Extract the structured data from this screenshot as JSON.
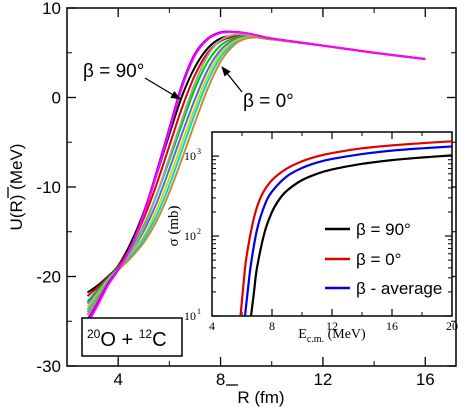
{
  "chart_data": [
    {
      "type": "line",
      "xlabel": "R (fm)",
      "ylabel": "U(R) (MeV)",
      "xlim": [
        2.0,
        17.2
      ],
      "ylim": [
        -30,
        10
      ],
      "xticks": [
        4,
        8,
        12,
        16
      ],
      "yticks": [
        -30,
        -20,
        -10,
        0,
        10
      ],
      "xtick_labels": [
        "4",
        "8",
        "12",
        "16"
      ],
      "ytick_labels": [
        "-30",
        "-20",
        "-10",
        "0",
        "10"
      ],
      "annotations": {
        "beta90": "β = 90°",
        "beta0": "β = 0°",
        "reaction": "20O + 12C"
      },
      "series": [
        {
          "color": "#000000",
          "x": [
            2.8,
            3.2,
            3.6,
            4.0,
            4.5,
            5.0,
            5.5,
            6.0,
            6.5,
            7.0,
            7.5,
            8.0,
            8.5,
            9.0,
            9.5,
            10,
            12,
            14,
            16
          ],
          "y": [
            -21.8,
            -21.0,
            -20.0,
            -18.8,
            -16.2,
            -12.8,
            -8.6,
            -4.1,
            0.2,
            3.4,
            5.5,
            6.6,
            6.9,
            6.9,
            6.7,
            6.5,
            5.8,
            5.0,
            4.3
          ]
        },
        {
          "color": "#e00000",
          "x": [
            2.8,
            3.2,
            3.6,
            4.0,
            4.5,
            5.0,
            5.5,
            6.0,
            6.5,
            7.0,
            7.5,
            8.0,
            8.5,
            9.0,
            9.5,
            10,
            12,
            14,
            16
          ],
          "y": [
            -22.2,
            -21.2,
            -20.1,
            -18.9,
            -16.6,
            -13.5,
            -9.7,
            -5.4,
            -1.1,
            2.5,
            5.0,
            6.3,
            6.8,
            6.85,
            6.7,
            6.5,
            5.8,
            5.0,
            4.3
          ]
        },
        {
          "color": "#00c800",
          "x": [
            2.8,
            3.2,
            3.6,
            4.0,
            4.5,
            5.0,
            5.5,
            6.0,
            6.5,
            7.0,
            7.5,
            8.0,
            8.5,
            9.0,
            9.5,
            10,
            12,
            14,
            16
          ],
          "y": [
            -22.8,
            -21.5,
            -20.2,
            -19.0,
            -17.0,
            -14.3,
            -10.9,
            -7.0,
            -2.9,
            1.0,
            4.0,
            5.8,
            6.6,
            6.8,
            6.7,
            6.5,
            5.8,
            5.0,
            4.3
          ]
        },
        {
          "color": "#4b6fd6",
          "x": [
            2.8,
            3.2,
            3.6,
            4.0,
            4.5,
            5.0,
            5.5,
            6.0,
            6.5,
            7.0,
            7.5,
            8.0,
            8.5,
            9.0,
            9.5,
            10,
            12,
            14,
            16
          ],
          "y": [
            -23.0,
            -21.7,
            -20.3,
            -19.1,
            -17.3,
            -14.9,
            -11.8,
            -8.0,
            -4.0,
            -0.2,
            3.1,
            5.3,
            6.4,
            6.75,
            6.7,
            6.5,
            5.8,
            5.0,
            4.3
          ]
        },
        {
          "color": "#d4d400",
          "x": [
            2.8,
            3.2,
            3.6,
            4.0,
            4.5,
            5.0,
            5.5,
            6.0,
            6.5,
            7.0,
            7.5,
            8.0,
            8.5,
            9.0,
            9.5,
            10,
            12,
            14,
            16
          ],
          "y": [
            -23.4,
            -21.9,
            -20.4,
            -19.2,
            -17.6,
            -15.5,
            -12.6,
            -9.0,
            -5.0,
            -1.1,
            2.4,
            4.9,
            6.2,
            6.7,
            6.7,
            6.5,
            5.8,
            5.0,
            4.3
          ]
        },
        {
          "color": "#a0a0a0",
          "x": [
            2.8,
            3.2,
            3.6,
            4.0,
            4.5,
            5.0,
            5.5,
            6.0,
            6.5,
            7.0,
            7.5,
            8.0,
            8.5,
            9.0,
            9.5,
            10,
            12,
            14,
            16
          ],
          "y": [
            -23.7,
            -22.1,
            -20.5,
            -19.2,
            -17.3,
            -14.5,
            -10.9,
            -6.7,
            -2.4,
            1.6,
            4.7,
            6.4,
            7.0,
            7.0,
            6.8,
            6.5,
            5.8,
            5.0,
            4.3
          ]
        },
        {
          "color": "#00d8d8",
          "x": [
            2.8,
            3.2,
            3.6,
            4.0,
            4.5,
            5.0,
            5.5,
            6.0,
            6.5,
            7.0,
            7.5,
            8.0,
            8.5,
            9.0,
            9.5,
            10,
            12,
            14,
            16
          ],
          "y": [
            -24.0,
            -22.3,
            -20.6,
            -19.3,
            -17.7,
            -15.8,
            -13.2,
            -9.8,
            -5.8,
            -1.8,
            1.8,
            4.5,
            6.0,
            6.6,
            6.7,
            6.5,
            5.8,
            5.0,
            4.3
          ]
        },
        {
          "color": "#cc8a2e",
          "x": [
            2.8,
            3.2,
            3.6,
            4.0,
            4.5,
            5.0,
            5.5,
            6.0,
            6.5,
            7.0,
            7.5,
            8.0,
            8.5,
            9.0,
            9.5,
            10,
            12,
            14,
            16
          ],
          "y": [
            -24.3,
            -22.5,
            -20.7,
            -19.3,
            -17.9,
            -16.2,
            -13.8,
            -10.6,
            -6.8,
            -2.8,
            1.0,
            4.0,
            5.8,
            6.6,
            6.7,
            6.5,
            5.8,
            5.0,
            4.3
          ]
        },
        {
          "color": "#8c00e6",
          "x": [
            2.8,
            3.2,
            3.6,
            4.0,
            4.5,
            5.0,
            5.5,
            6.0,
            6.5,
            7.0,
            7.5,
            8.0,
            8.5,
            9.0,
            9.5,
            10,
            12,
            14,
            16
          ],
          "y": [
            -24.8,
            -22.9,
            -20.8,
            -19.2,
            -16.6,
            -12.9,
            -8.3,
            -3.4,
            1.5,
            4.9,
            6.6,
            7.3,
            7.35,
            7.2,
            6.9,
            6.6,
            5.8,
            5.0,
            4.3
          ]
        },
        {
          "color": "#ff00ff",
          "x": [
            2.8,
            3.2,
            3.6,
            4.0,
            4.5,
            5.0,
            5.5,
            6.0,
            6.5,
            7.0,
            7.5,
            8.0,
            8.5,
            9.0,
            9.5,
            10,
            12,
            14,
            16
          ],
          "y": [
            -25.3,
            -23.2,
            -21.0,
            -19.3,
            -16.7,
            -13.1,
            -8.6,
            -3.7,
            1.2,
            4.7,
            6.5,
            7.2,
            7.3,
            7.2,
            6.9,
            6.6,
            5.8,
            5.0,
            4.3
          ]
        }
      ]
    },
    {
      "type": "line",
      "xlabel": "E_c.m. (MeV)",
      "ylabel": "σ (mb)",
      "xlim": [
        4,
        20
      ],
      "ylim": [
        10,
        2000
      ],
      "yscale": "log",
      "xticks": [
        4,
        8,
        12,
        16,
        20
      ],
      "xtick_labels": [
        "4",
        "8",
        "12",
        "16",
        "20"
      ],
      "yticks": [
        10,
        100,
        1000
      ],
      "legend_placement": "lower-right",
      "series": [
        {
          "name": "β = 90°",
          "color": "#000000",
          "x": [
            6.6,
            6.8,
            7.0,
            7.5,
            8.0,
            8.5,
            9.0,
            10,
            11,
            12,
            14,
            16,
            18,
            20
          ],
          "y": [
            10,
            20,
            40,
            110,
            200,
            290,
            370,
            500,
            600,
            680,
            800,
            890,
            960,
            1020
          ]
        },
        {
          "name": "β = 0°",
          "color": "#e00000",
          "x": [
            5.9,
            6.1,
            6.3,
            6.8,
            7.3,
            8.0,
            9.0,
            10,
            11,
            12,
            14,
            16,
            18,
            20
          ],
          "y": [
            10,
            25,
            55,
            170,
            320,
            500,
            700,
            860,
            990,
            1090,
            1250,
            1360,
            1450,
            1530
          ]
        },
        {
          "name": "β - average",
          "color": "#0000e6",
          "x": [
            6.2,
            6.4,
            6.6,
            7.0,
            7.5,
            8.0,
            9.0,
            10,
            11,
            12,
            14,
            16,
            18,
            20
          ],
          "y": [
            10,
            22,
            45,
            120,
            240,
            360,
            560,
            710,
            830,
            920,
            1060,
            1170,
            1250,
            1320
          ]
        }
      ]
    }
  ]
}
